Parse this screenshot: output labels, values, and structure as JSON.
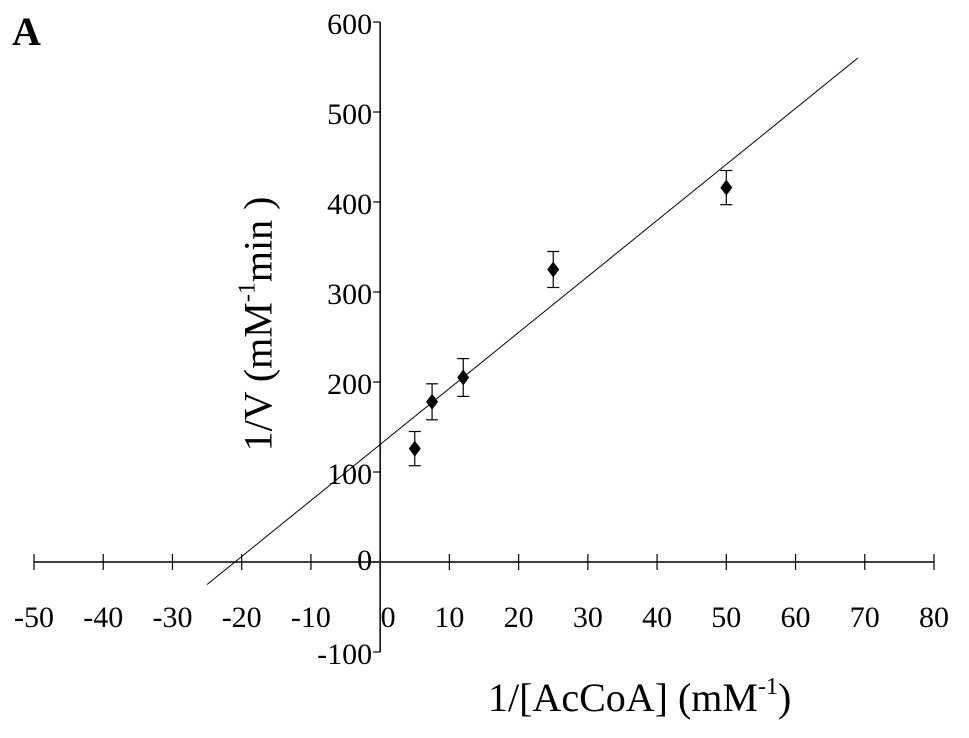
{
  "panel_label": "A",
  "chart_data": {
    "type": "scatter",
    "xlabel": {
      "prefix": "1/[AcCoA] (mM",
      "sup": "-1",
      "suffix": ")"
    },
    "ylabel": {
      "prefix": "1/V (mM",
      "sup": "-1",
      "suffix": "min )"
    },
    "xlim": [
      -50,
      80
    ],
    "ylim": [
      -100,
      600
    ],
    "xticks": [
      -50,
      -40,
      -30,
      -20,
      -10,
      0,
      10,
      20,
      30,
      40,
      50,
      60,
      70,
      80
    ],
    "yticks": [
      -100,
      0,
      100,
      200,
      300,
      400,
      500,
      600
    ],
    "grid": false,
    "series": [
      {
        "marker": "diamond",
        "color": "#000000",
        "points": [
          {
            "x": 5,
            "y": 126,
            "err": 19
          },
          {
            "x": 7.5,
            "y": 178,
            "err": 20
          },
          {
            "x": 12,
            "y": 205,
            "err": 21
          },
          {
            "x": 25,
            "y": 325,
            "err": 20
          },
          {
            "x": 50,
            "y": 416,
            "err": 19
          }
        ]
      }
    ],
    "fit_line": {
      "x": [
        -25,
        69
      ],
      "y": [
        -25,
        560
      ]
    }
  }
}
